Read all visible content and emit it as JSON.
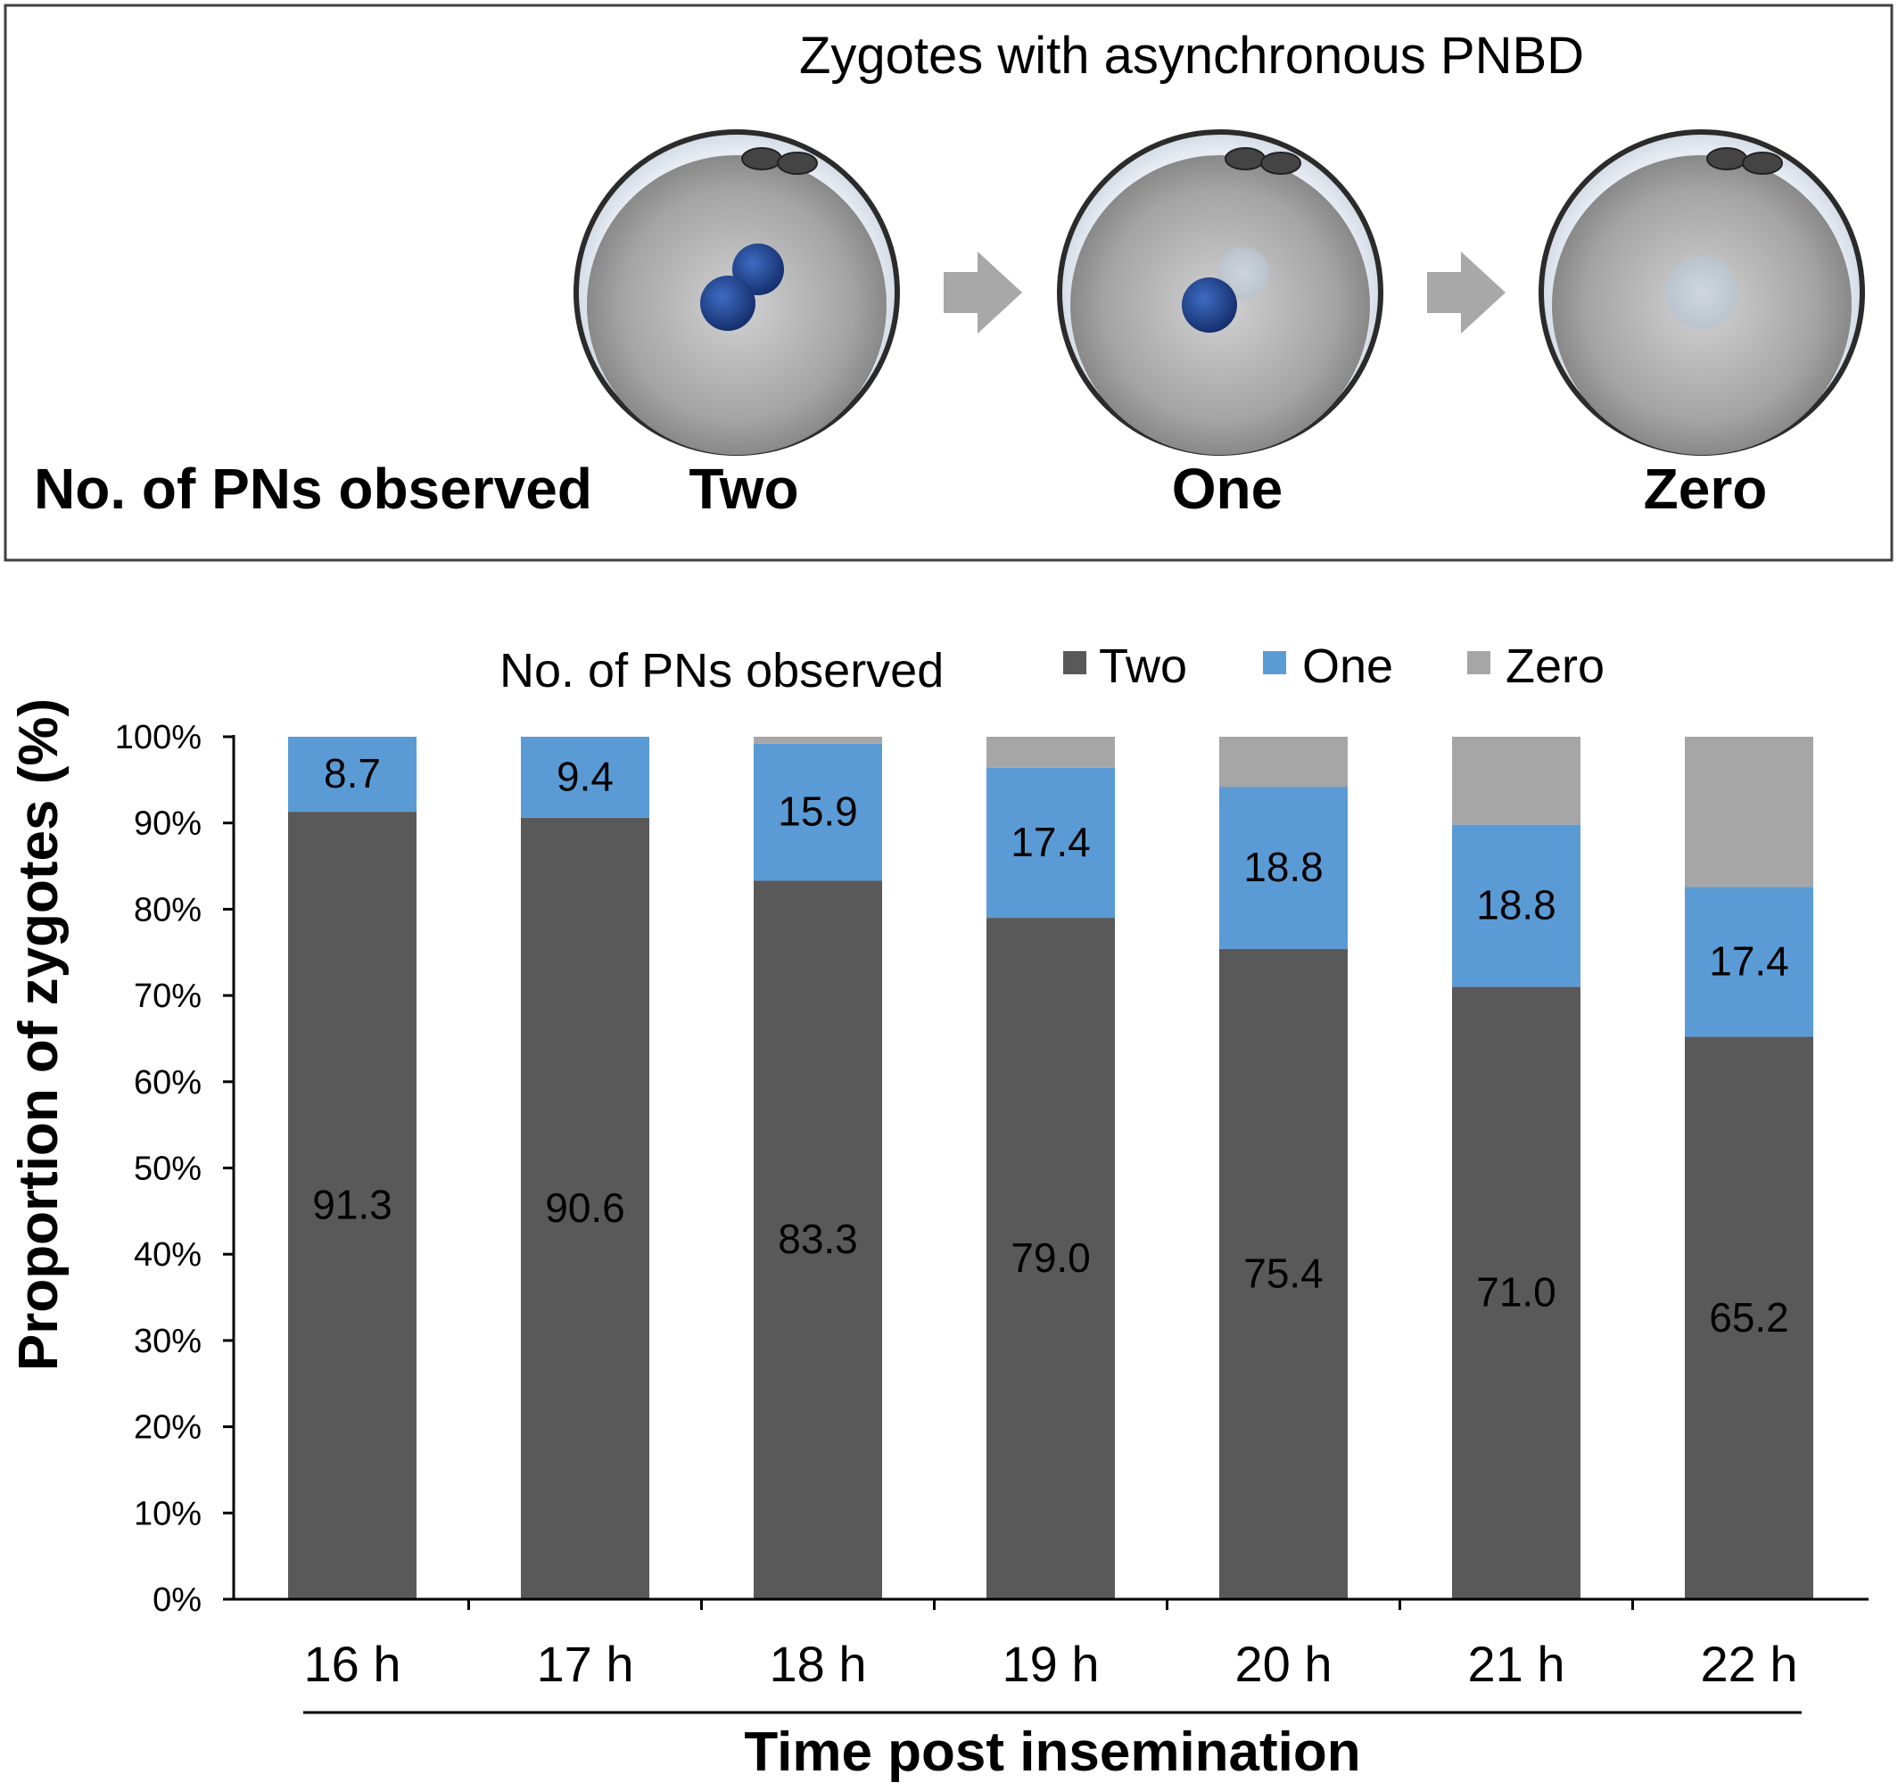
{
  "panel": {
    "title": "Zygotes with asynchronous PNBD",
    "row_label": "No. of PNs observed",
    "stage_labels": [
      "Two",
      "One",
      "Zero"
    ]
  },
  "chart_data": {
    "type": "bar",
    "stacked": true,
    "categories": [
      "16 h",
      "17 h",
      "18 h",
      "19 h",
      "20 h",
      "21 h",
      "22 h"
    ],
    "series": [
      {
        "name": "Two",
        "color": "#595959",
        "values": [
          91.3,
          90.6,
          83.3,
          79.0,
          75.4,
          71.0,
          65.2
        ]
      },
      {
        "name": "One",
        "color": "#5b9bd5",
        "values": [
          8.7,
          9.4,
          15.9,
          17.4,
          18.8,
          18.8,
          17.4
        ]
      },
      {
        "name": "Zero",
        "color": "#a6a6a6",
        "values": [
          0.0,
          0.0,
          0.8,
          3.6,
          5.8,
          10.2,
          17.4
        ]
      }
    ],
    "data_labels": {
      "Two": [
        "91.3",
        "90.6",
        "83.3",
        "79.0",
        "75.4",
        "71.0",
        "65.2"
      ],
      "One": [
        "8.7",
        "9.4",
        "15.9",
        "17.4",
        "18.8",
        "18.8",
        "17.4"
      ]
    },
    "legend_title": "No. of PNs observed",
    "legend_position": "top",
    "xlabel": "Time post insemination",
    "ylabel": "Proportion of zygotes (%)",
    "ylim": [
      0,
      100
    ],
    "yticks": [
      "0%",
      "10%",
      "20%",
      "30%",
      "40%",
      "50%",
      "60%",
      "70%",
      "80%",
      "90%",
      "100%"
    ],
    "grid": false
  }
}
